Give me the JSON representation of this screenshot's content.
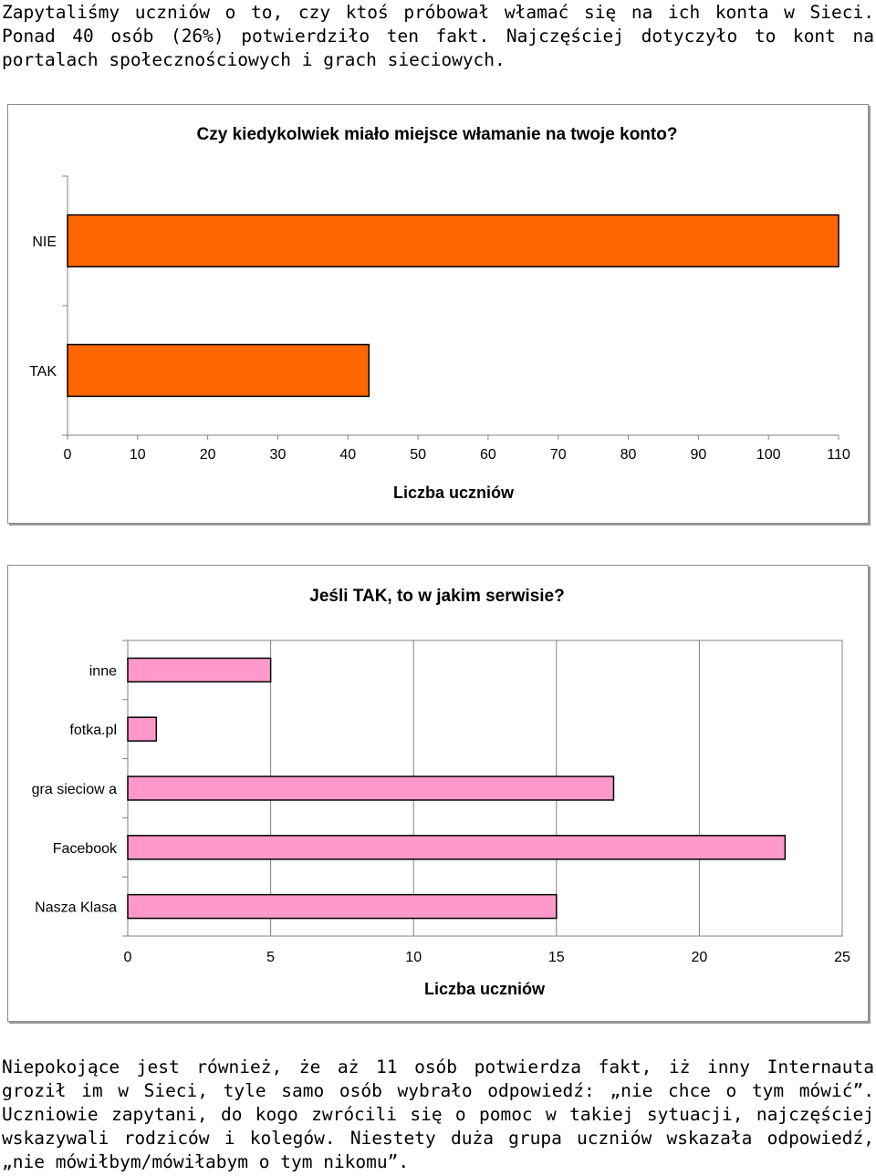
{
  "paragraphs": {
    "top": "Zapytaliśmy uczniów o to, czy ktoś próbował włamać się na ich konta w Sieci. Ponad 40 osób (26%) potwierdziło ten fakt. Najczęściej dotyczyło to kont na portalach społecznościowych i grach sieciowych.",
    "bottom": "Niepokojące jest również, że aż 11 osób potwierdza fakt, iż inny Internauta groził im w Sieci, tyle samo osób wybrało odpowiedź: „nie chce o tym mówić”. Uczniowie zapytani, do kogo zwrócili się o pomoc w takiej sytuacji, najczęściej wskazywali rodziców i kolegów. Niestety duża grupa uczniów wskazała odpowiedź, „nie mówiłbym/mówiłabym o tym nikomu”."
  },
  "chart_data": [
    {
      "type": "bar",
      "orientation": "horizontal",
      "title": "Czy kiedykolwiek miało miejsce włamanie na twoje konto?",
      "xlabel": "Liczba uczniów",
      "ylabel": "",
      "categories": [
        "NIE",
        "TAK"
      ],
      "values": [
        110,
        43
      ],
      "xlim": [
        0,
        110
      ],
      "xticks": [
        0,
        10,
        20,
        30,
        40,
        50,
        60,
        70,
        80,
        90,
        100,
        110
      ],
      "grid": false,
      "legend": "none",
      "bar_color": "#ff6600"
    },
    {
      "type": "bar",
      "orientation": "horizontal",
      "title": "Jeśli TAK, to w jakim serwisie?",
      "xlabel": "Liczba uczniów",
      "ylabel": "",
      "categories": [
        "inne",
        "fotka.pl",
        "gra sieciow a",
        "Facebook",
        "Nasza Klasa"
      ],
      "values": [
        5,
        1,
        17,
        23,
        15
      ],
      "xlim": [
        0,
        25
      ],
      "xticks": [
        0,
        5,
        10,
        15,
        20,
        25
      ],
      "grid": true,
      "legend": "none",
      "bar_color": "#ff99cc"
    }
  ]
}
